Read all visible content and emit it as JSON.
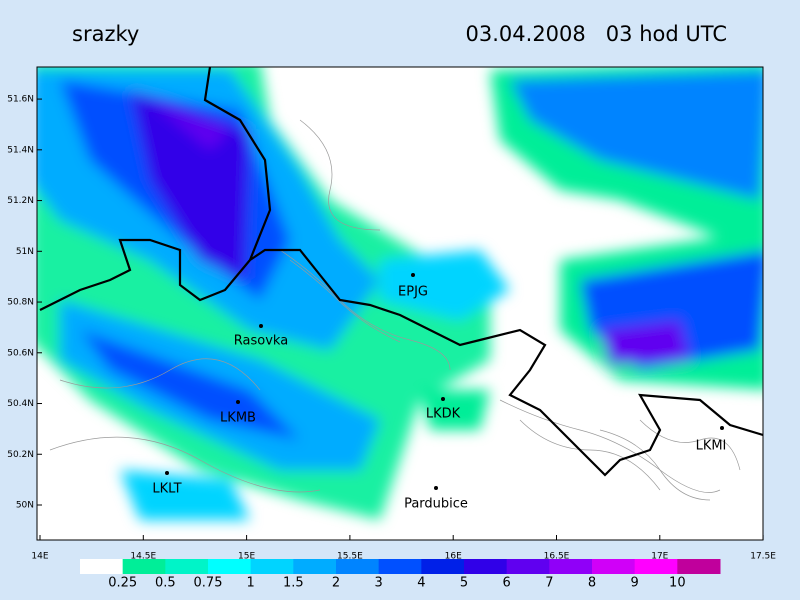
{
  "header": {
    "title": "srazky",
    "timestamp": "03.04.2008   03 hod UTC"
  },
  "map": {
    "lat_ticks": [
      {
        "value": 51.6,
        "label": "51.6N"
      },
      {
        "value": 51.4,
        "label": "51.4N"
      },
      {
        "value": 51.2,
        "label": "51.2N"
      },
      {
        "value": 51,
        "label": "51N"
      },
      {
        "value": 50.8,
        "label": "50.8N"
      },
      {
        "value": 50.6,
        "label": "50.6N"
      },
      {
        "value": 50.4,
        "label": "50.4N"
      },
      {
        "value": 50.2,
        "label": "50.2N"
      },
      {
        "value": 50,
        "label": "50N"
      }
    ],
    "lon_ticks": [
      {
        "value": 14,
        "label": "14E"
      },
      {
        "value": 14.5,
        "label": "14.5E"
      },
      {
        "value": 15,
        "label": "15E"
      },
      {
        "value": 15.5,
        "label": "15.5E"
      },
      {
        "value": 16,
        "label": "16E"
      },
      {
        "value": 16.5,
        "label": "16.5E"
      },
      {
        "value": 17,
        "label": "17E"
      },
      {
        "value": 17.5,
        "label": "17.5E"
      }
    ],
    "stations": [
      "EPJG",
      "Rasovka",
      "LKMB",
      "LKDK",
      "LKLT",
      "Pardubice",
      "LKMI"
    ]
  },
  "legend": {
    "colors": [
      "#ffffff",
      "#00ee98",
      "#00f4c8",
      "#00ffff",
      "#00d4ff",
      "#00acff",
      "#0084ff",
      "#0050ff",
      "#0020e8",
      "#3000e8",
      "#6000f0",
      "#9000f8",
      "#d000f8",
      "#ff00ff",
      "#c0009c"
    ],
    "labels": [
      "0.25",
      "0.5",
      "0.75",
      "1",
      "1.5",
      "2",
      "3",
      "4",
      "5",
      "6",
      "7",
      "8",
      "9",
      "10"
    ]
  }
}
